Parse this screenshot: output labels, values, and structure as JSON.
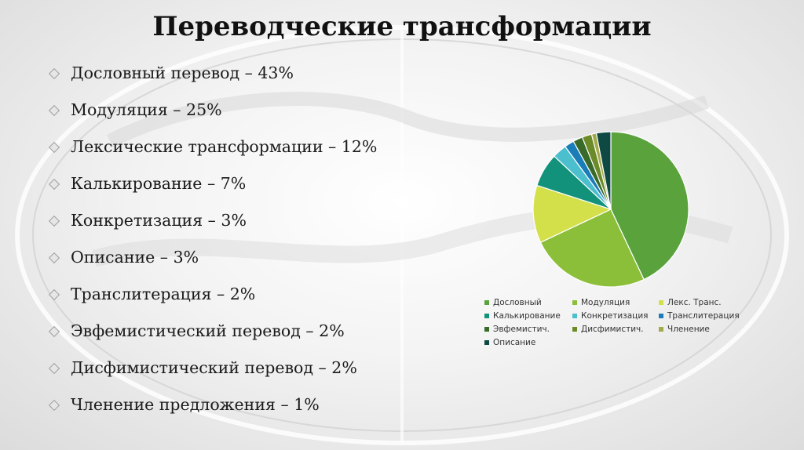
{
  "title": "Переводческие трансформации",
  "bullets": [
    "Дословный перевод – 43%",
    "Модуляция – 25%",
    "Лексические трансформации – 12%",
    "Калькирование – 7%",
    "Конкретизация – 3%",
    "Описание – 3%",
    "Транслитерация – 2%",
    "Эвфемистический перевод – 2%",
    "Дисфимистический перевод – 2%",
    "Членение предложения – 1%"
  ],
  "chart_data": {
    "type": "pie",
    "legend_position": "bottom",
    "slices": [
      {
        "label": "Дословный",
        "value": 43,
        "color": "#5aa33c"
      },
      {
        "label": "Модуляция",
        "value": 25,
        "color": "#8bbf3a"
      },
      {
        "label": "Лекс. Транс.",
        "value": 12,
        "color": "#d3e04a"
      },
      {
        "label": "Калькирование",
        "value": 7,
        "color": "#12927a"
      },
      {
        "label": "Конкретизация",
        "value": 3,
        "color": "#4cbfcf"
      },
      {
        "label": "Транслитерация",
        "value": 2,
        "color": "#1a7db8"
      },
      {
        "label": "Эвфемистич.",
        "value": 2,
        "color": "#3a6a2a"
      },
      {
        "label": "Дисфимистич.",
        "value": 2,
        "color": "#6b8a28"
      },
      {
        "label": "Членение",
        "value": 1,
        "color": "#a3aa4a"
      },
      {
        "label": "Описание",
        "value": 3,
        "color": "#0e4a43"
      }
    ]
  }
}
